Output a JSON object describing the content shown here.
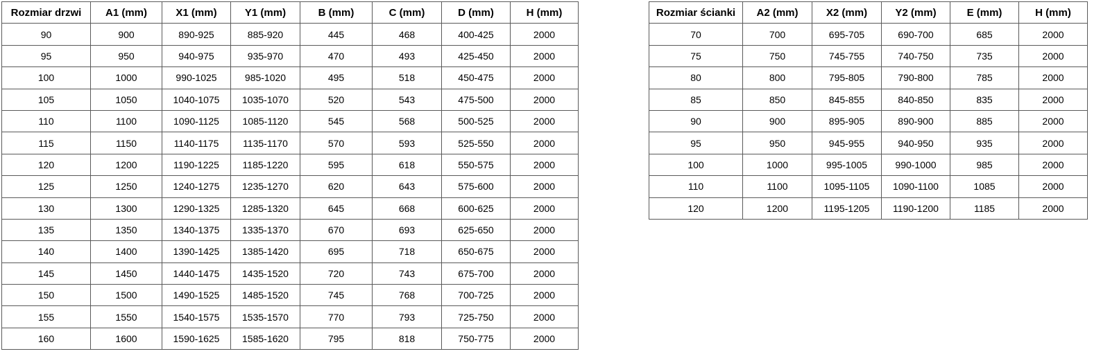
{
  "colors": {
    "border-color": "#595959",
    "text-color": "#000000",
    "bg-color": "#ffffff"
  },
  "tables": [
    {
      "name": "door-size-table",
      "headers": [
        "Rozmiar drzwi",
        "A1 (mm)",
        "X1 (mm)",
        "Y1 (mm)",
        "B (mm)",
        "C (mm)",
        "D (mm)",
        "H (mm)"
      ],
      "rows": [
        [
          "90",
          "900",
          "890-925",
          "885-920",
          "445",
          "468",
          "400-425",
          "2000"
        ],
        [
          "95",
          "950",
          "940-975",
          "935-970",
          "470",
          "493",
          "425-450",
          "2000"
        ],
        [
          "100",
          "1000",
          "990-1025",
          "985-1020",
          "495",
          "518",
          "450-475",
          "2000"
        ],
        [
          "105",
          "1050",
          "1040-1075",
          "1035-1070",
          "520",
          "543",
          "475-500",
          "2000"
        ],
        [
          "110",
          "1100",
          "1090-1125",
          "1085-1120",
          "545",
          "568",
          "500-525",
          "2000"
        ],
        [
          "115",
          "1150",
          "1140-1175",
          "1135-1170",
          "570",
          "593",
          "525-550",
          "2000"
        ],
        [
          "120",
          "1200",
          "1190-1225",
          "1185-1220",
          "595",
          "618",
          "550-575",
          "2000"
        ],
        [
          "125",
          "1250",
          "1240-1275",
          "1235-1270",
          "620",
          "643",
          "575-600",
          "2000"
        ],
        [
          "130",
          "1300",
          "1290-1325",
          "1285-1320",
          "645",
          "668",
          "600-625",
          "2000"
        ],
        [
          "135",
          "1350",
          "1340-1375",
          "1335-1370",
          "670",
          "693",
          "625-650",
          "2000"
        ],
        [
          "140",
          "1400",
          "1390-1425",
          "1385-1420",
          "695",
          "718",
          "650-675",
          "2000"
        ],
        [
          "145",
          "1450",
          "1440-1475",
          "1435-1520",
          "720",
          "743",
          "675-700",
          "2000"
        ],
        [
          "150",
          "1500",
          "1490-1525",
          "1485-1520",
          "745",
          "768",
          "700-725",
          "2000"
        ],
        [
          "155",
          "1550",
          "1540-1575",
          "1535-1570",
          "770",
          "793",
          "725-750",
          "2000"
        ],
        [
          "160",
          "1600",
          "1590-1625",
          "1585-1620",
          "795",
          "818",
          "750-775",
          "2000"
        ]
      ]
    },
    {
      "name": "wall-size-table",
      "headers": [
        "Rozmiar ścianki",
        "A2 (mm)",
        "X2 (mm)",
        "Y2 (mm)",
        "E (mm)",
        "H (mm)"
      ],
      "rows": [
        [
          "70",
          "700",
          "695-705",
          "690-700",
          "685",
          "2000"
        ],
        [
          "75",
          "750",
          "745-755",
          "740-750",
          "735",
          "2000"
        ],
        [
          "80",
          "800",
          "795-805",
          "790-800",
          "785",
          "2000"
        ],
        [
          "85",
          "850",
          "845-855",
          "840-850",
          "835",
          "2000"
        ],
        [
          "90",
          "900",
          "895-905",
          "890-900",
          "885",
          "2000"
        ],
        [
          "95",
          "950",
          "945-955",
          "940-950",
          "935",
          "2000"
        ],
        [
          "100",
          "1000",
          "995-1005",
          "990-1000",
          "985",
          "2000"
        ],
        [
          "110",
          "1100",
          "1095-1105",
          "1090-1100",
          "1085",
          "2000"
        ],
        [
          "120",
          "1200",
          "1195-1205",
          "1190-1200",
          "1185",
          "2000"
        ]
      ]
    }
  ]
}
